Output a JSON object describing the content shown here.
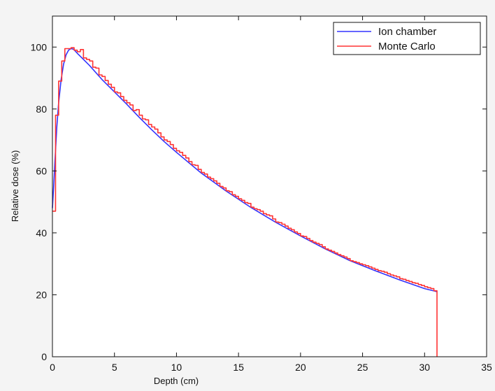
{
  "chart_data": {
    "type": "line",
    "title": "",
    "xlabel": "Depth (cm)",
    "ylabel": "Relative dose (%)",
    "xlim": [
      0,
      35
    ],
    "ylim": [
      0,
      110
    ],
    "xticks": [
      0,
      5,
      10,
      15,
      20,
      25,
      30,
      35
    ],
    "yticks": [
      0,
      20,
      40,
      60,
      80,
      100
    ],
    "grid": false,
    "legend_position": "top-right",
    "colors": {
      "background": "#f4f4f4",
      "plot_background": "#ffffff",
      "axis": "#111111",
      "ion_chamber": "#3333ff",
      "monte_carlo": "#ff3333"
    },
    "series": [
      {
        "name": "Ion chamber",
        "kind": "line",
        "color": "#3333ff",
        "x": [
          0.0,
          0.1,
          0.2,
          0.35,
          0.5,
          0.7,
          0.9,
          1.1,
          1.3,
          1.5,
          1.7,
          2.0,
          2.5,
          3.0,
          4.0,
          5.0,
          6.0,
          7.0,
          8.0,
          9.0,
          10.0,
          12.0,
          14.0,
          16.0,
          18.0,
          20.0,
          22.0,
          24.0,
          26.0,
          28.0,
          30.0,
          31.0
        ],
        "y": [
          48.0,
          55.0,
          63.0,
          74.0,
          82.0,
          89.5,
          94.5,
          97.5,
          99.0,
          99.5,
          99.3,
          98.0,
          96.0,
          94.0,
          89.5,
          85.5,
          81.5,
          77.3,
          73.3,
          69.5,
          66.0,
          59.3,
          53.5,
          48.2,
          43.4,
          39.0,
          34.8,
          31.0,
          27.8,
          24.8,
          22.0,
          21.0
        ]
      },
      {
        "name": "Monte Carlo",
        "kind": "step",
        "color": "#ff3333",
        "x": [
          0.0,
          0.25,
          0.5,
          0.75,
          1.0,
          1.25,
          1.5,
          1.75,
          2.0,
          2.25,
          2.5,
          2.75,
          3.0,
          3.25,
          3.5,
          3.75,
          4.0,
          4.25,
          4.5,
          4.75,
          5.0,
          5.25,
          5.5,
          5.75,
          6.0,
          6.25,
          6.5,
          6.75,
          7.0,
          7.25,
          7.5,
          7.75,
          8.0,
          8.25,
          8.5,
          8.75,
          9.0,
          9.25,
          9.5,
          9.75,
          10.0,
          10.25,
          10.5,
          10.75,
          11.0,
          11.25,
          11.5,
          11.75,
          12.0,
          12.25,
          12.5,
          12.75,
          13.0,
          13.25,
          13.5,
          13.75,
          14.0,
          14.25,
          14.5,
          14.75,
          15.0,
          15.25,
          15.5,
          15.75,
          16.0,
          16.25,
          16.5,
          16.75,
          17.0,
          17.25,
          17.5,
          17.75,
          18.0,
          18.25,
          18.5,
          18.75,
          19.0,
          19.25,
          19.5,
          19.75,
          20.0,
          20.25,
          20.5,
          20.75,
          21.0,
          21.25,
          21.5,
          21.75,
          22.0,
          22.25,
          22.5,
          22.75,
          23.0,
          23.25,
          23.5,
          23.75,
          24.0,
          24.25,
          24.5,
          24.75,
          25.0,
          25.25,
          25.5,
          25.75,
          26.0,
          26.25,
          26.5,
          26.75,
          27.0,
          27.25,
          27.5,
          27.75,
          28.0,
          28.25,
          28.5,
          28.75,
          29.0,
          29.25,
          29.5,
          29.75,
          30.0,
          30.25,
          30.5,
          30.75,
          31.0
        ],
        "y": [
          47.0,
          78.0,
          89.0,
          95.5,
          99.5,
          99.5,
          99.8,
          99.0,
          98.5,
          99.2,
          96.5,
          96.0,
          95.5,
          93.5,
          93.2,
          91.0,
          90.5,
          89.2,
          88.0,
          87.0,
          85.5,
          85.2,
          84.0,
          82.8,
          82.0,
          81.3,
          79.5,
          79.8,
          78.0,
          76.8,
          76.5,
          75.0,
          74.2,
          73.5,
          72.3,
          71.0,
          70.0,
          69.5,
          68.5,
          67.3,
          66.5,
          66.0,
          65.0,
          64.2,
          63.0,
          62.0,
          61.8,
          60.5,
          59.5,
          59.0,
          58.0,
          57.5,
          56.8,
          56.0,
          55.0,
          54.5,
          53.6,
          53.3,
          52.3,
          51.8,
          51.0,
          50.5,
          49.8,
          49.5,
          48.3,
          47.8,
          47.5,
          47.0,
          46.2,
          45.8,
          45.5,
          44.5,
          43.5,
          43.3,
          42.8,
          42.2,
          41.5,
          41.0,
          40.3,
          39.8,
          39.0,
          38.8,
          38.2,
          37.5,
          37.0,
          36.6,
          36.2,
          35.5,
          34.8,
          34.4,
          34.0,
          33.5,
          33.0,
          32.6,
          32.2,
          31.7,
          31.0,
          30.7,
          30.4,
          30.0,
          29.7,
          29.4,
          29.0,
          28.6,
          28.2,
          27.8,
          27.6,
          27.3,
          26.8,
          26.4,
          26.1,
          25.8,
          25.2,
          25.0,
          24.6,
          24.3,
          23.9,
          23.7,
          23.3,
          23.0,
          22.6,
          22.3,
          22.0,
          21.3,
          0.0
        ]
      }
    ]
  }
}
